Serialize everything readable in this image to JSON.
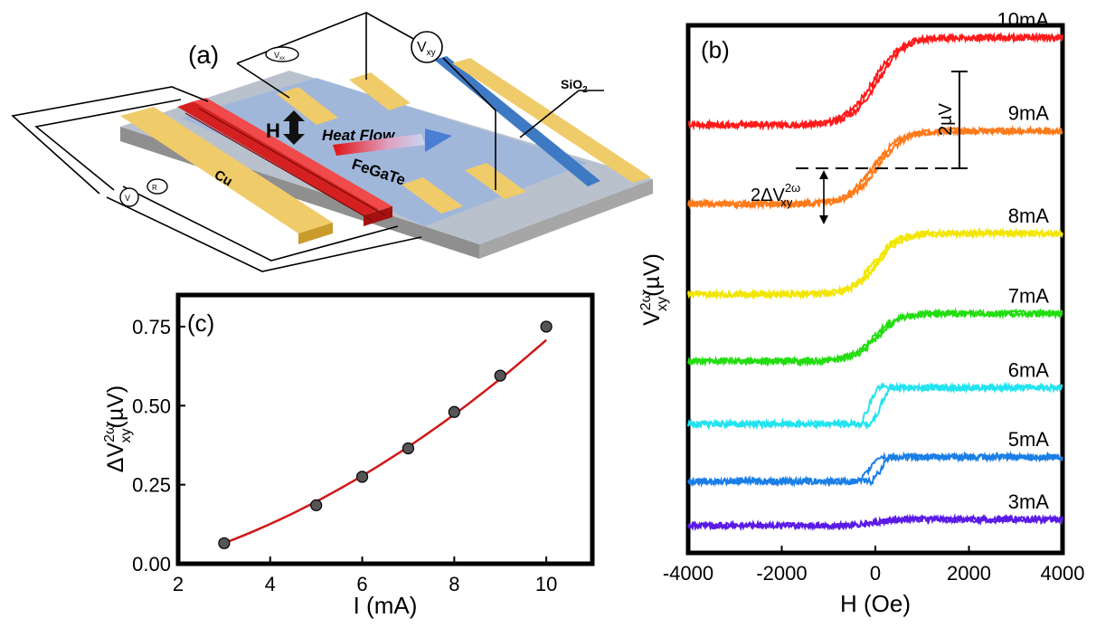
{
  "figure": {
    "panel_a_label": "(a)",
    "panel_b_label": "(b)",
    "panel_c_label": "(c)"
  },
  "device": {
    "meter_vxy_label": "V",
    "meter_vxy_sub": "xy",
    "meter_small_label": "V",
    "meter_small_sub": "xx",
    "source_label": "V",
    "resistor_label": "R",
    "field_label": "H",
    "heat_flow_label": "Heat Flow",
    "material_label": "FeGaTe",
    "electrode_label": "Cu",
    "substrate_label": "SiO",
    "substrate_sub": "2"
  },
  "chart_data": [
    {
      "type": "scatter",
      "panel": "(c)",
      "xlabel": "I (mA)",
      "ylabel_prefix": "ΔV",
      "ylabel_sup": "2ω",
      "ylabel_sub": "xy",
      "ylabel_suffix": "(µV)",
      "xlim": [
        2,
        11
      ],
      "ylim": [
        0,
        0.85
      ],
      "xticks": [
        2,
        4,
        6,
        8,
        10
      ],
      "yticks": [
        0.0,
        0.25,
        0.5,
        0.75
      ],
      "ytick_labels": [
        "0.00",
        "0.25",
        "0.50",
        "0.75"
      ],
      "points": {
        "x": [
          3,
          5,
          6,
          7,
          8,
          9,
          10
        ],
        "y": [
          0.065,
          0.185,
          0.275,
          0.365,
          0.48,
          0.595,
          0.75
        ]
      },
      "fit": {
        "x_start": 3,
        "x_end": 10,
        "coef": [
          0.0052,
          0.0242,
          -0.0542
        ]
      }
    },
    {
      "type": "line",
      "panel": "(b)",
      "xlabel": "H (Oe)",
      "ylabel_prefix": "V",
      "ylabel_sup": "2ω",
      "ylabel_sub": "xy",
      "ylabel_suffix": "(µV)",
      "xlim": [
        -4000,
        4000
      ],
      "xticks": [
        -4000,
        -2000,
        0,
        2000,
        4000
      ],
      "xtick_labels": [
        "-4000",
        "-2000",
        "0",
        "2000",
        "4000"
      ],
      "ylim": [
        -0.6,
        9.8
      ],
      "series": [
        {
          "name": "10mA",
          "offset": 8.7,
          "amp": 0.86,
          "shape": "tanh",
          "width": 800,
          "color": "#ff1a1a"
        },
        {
          "name": "9mA",
          "offset": 7.0,
          "amp": 0.72,
          "shape": "tanh",
          "width": 800,
          "color": "#ff7a1a"
        },
        {
          "name": "8mA",
          "offset": 5.1,
          "amp": 0.6,
          "shape": "tanh",
          "width": 700,
          "color": "#f2e600"
        },
        {
          "name": "7mA",
          "offset": 3.65,
          "amp": 0.47,
          "shape": "tanh",
          "width": 700,
          "color": "#22dd10"
        },
        {
          "name": "6mA",
          "offset": 2.3,
          "amp": 0.36,
          "shape": "step",
          "width": 250,
          "color": "#22e3f0"
        },
        {
          "name": "5mA",
          "offset": 1.05,
          "amp": 0.24,
          "shape": "step",
          "width": 250,
          "color": "#1a7ee6"
        },
        {
          "name": "3mA",
          "offset": 0.0,
          "amp": 0.06,
          "shape": "tanh",
          "width": 600,
          "color": "#5a1ae6"
        }
      ],
      "annotations": {
        "scale_bar_label": "2µV",
        "delta_label_prefix": "2ΔV",
        "delta_label_sup": "2ω",
        "delta_label_sub": "xy"
      }
    }
  ]
}
